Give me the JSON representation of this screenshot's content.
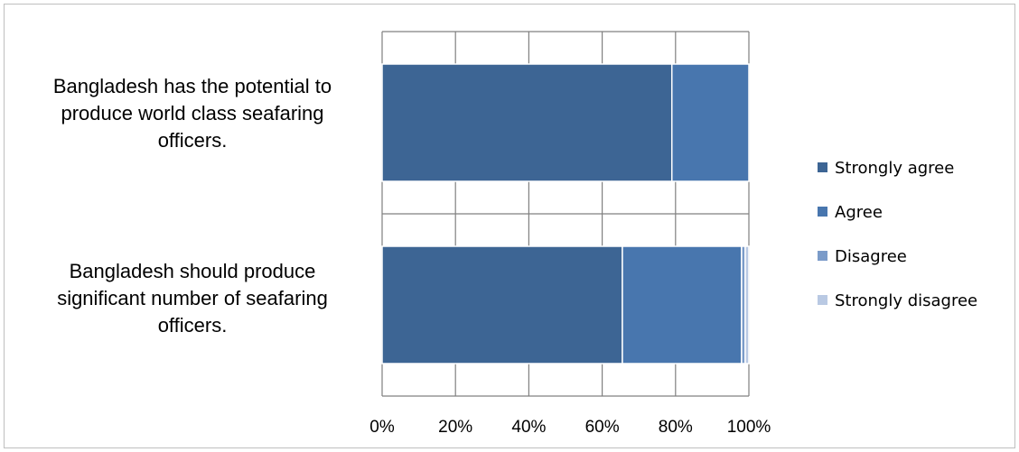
{
  "chart_data": {
    "type": "bar",
    "orientation": "horizontal",
    "stacked": "percent",
    "categories": [
      [
        "Bangladesh has the potential to",
        "produce world class seafaring",
        "officers."
      ],
      [
        "Bangladesh should produce",
        "significant number of seafaring",
        "officers."
      ]
    ],
    "series": [
      {
        "name": "Strongly agree",
        "values": [
          79,
          65.5
        ],
        "color": "#3d6594"
      },
      {
        "name": "Agree",
        "values": [
          21,
          32.5
        ],
        "color": "#4876ae"
      },
      {
        "name": "Disagree",
        "values": [
          0,
          1
        ],
        "color": "#7b9bc9"
      },
      {
        "name": "Strongly disagree",
        "values": [
          0,
          1
        ],
        "color": "#b9c9e3"
      }
    ],
    "xlim": [
      0,
      100
    ],
    "xticks": [
      "0%",
      "20%",
      "40%",
      "60%",
      "80%",
      "100%"
    ],
    "title": "",
    "xlabel": "",
    "ylabel": "",
    "grid": true,
    "legend_position": "right"
  }
}
